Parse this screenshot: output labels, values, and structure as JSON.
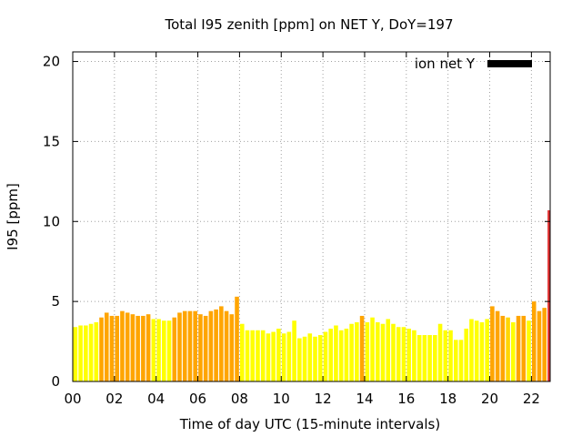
{
  "chart_data": {
    "type": "bar",
    "title": "Total I95 zenith [ppm] on NET Y, DoY=197",
    "xlabel": "Time of day UTC (15-minute intervals)",
    "ylabel": "I95 [ppm]",
    "xlim": [
      0,
      22.9
    ],
    "ylim": [
      0,
      20.6
    ],
    "xticks": [
      "00",
      "02",
      "04",
      "06",
      "08",
      "10",
      "12",
      "14",
      "16",
      "18",
      "20",
      "22"
    ],
    "yticks": [
      "0",
      "5",
      "10",
      "15",
      "20"
    ],
    "grid": true,
    "legend": {
      "position": "top-right",
      "entries": [
        {
          "name": "ion net Y",
          "color": "#000000"
        }
      ]
    },
    "bar_width_hours": 0.2,
    "colors": {
      "yellow": "#ffff00",
      "gold": "#ffd700",
      "orange": "#ffa500",
      "red": "#e03030"
    },
    "bars": [
      {
        "x": 0.125,
        "value": 3.4,
        "color": "#ffff00"
      },
      {
        "x": 0.375,
        "value": 3.5,
        "color": "#ffff00"
      },
      {
        "x": 0.625,
        "value": 3.5,
        "color": "#ffff00"
      },
      {
        "x": 0.875,
        "value": 3.6,
        "color": "#ffff00"
      },
      {
        "x": 1.125,
        "value": 3.7,
        "color": "#ffff00"
      },
      {
        "x": 1.375,
        "value": 4.0,
        "color": "#ffa500"
      },
      {
        "x": 1.625,
        "value": 4.3,
        "color": "#ffa500"
      },
      {
        "x": 1.875,
        "value": 4.1,
        "color": "#ffa500"
      },
      {
        "x": 2.125,
        "value": 4.1,
        "color": "#ffa500"
      },
      {
        "x": 2.375,
        "value": 4.4,
        "color": "#ffa500"
      },
      {
        "x": 2.625,
        "value": 4.3,
        "color": "#ffa500"
      },
      {
        "x": 2.875,
        "value": 4.2,
        "color": "#ffa500"
      },
      {
        "x": 3.125,
        "value": 4.1,
        "color": "#ffa500"
      },
      {
        "x": 3.375,
        "value": 4.1,
        "color": "#ffa500"
      },
      {
        "x": 3.625,
        "value": 4.2,
        "color": "#ffa500"
      },
      {
        "x": 3.875,
        "value": 3.9,
        "color": "#ffff00"
      },
      {
        "x": 4.125,
        "value": 3.9,
        "color": "#ffff00"
      },
      {
        "x": 4.375,
        "value": 3.8,
        "color": "#ffff00"
      },
      {
        "x": 4.625,
        "value": 3.8,
        "color": "#ffff00"
      },
      {
        "x": 4.875,
        "value": 4.0,
        "color": "#ffa500"
      },
      {
        "x": 5.125,
        "value": 4.3,
        "color": "#ffa500"
      },
      {
        "x": 5.375,
        "value": 4.4,
        "color": "#ffa500"
      },
      {
        "x": 5.625,
        "value": 4.4,
        "color": "#ffa500"
      },
      {
        "x": 5.875,
        "value": 4.4,
        "color": "#ffa500"
      },
      {
        "x": 6.125,
        "value": 4.2,
        "color": "#ffa500"
      },
      {
        "x": 6.375,
        "value": 4.1,
        "color": "#ffa500"
      },
      {
        "x": 6.625,
        "value": 4.4,
        "color": "#ffa500"
      },
      {
        "x": 6.875,
        "value": 4.5,
        "color": "#ffa500"
      },
      {
        "x": 7.125,
        "value": 4.7,
        "color": "#ffa500"
      },
      {
        "x": 7.375,
        "value": 4.4,
        "color": "#ffa500"
      },
      {
        "x": 7.625,
        "value": 4.2,
        "color": "#ffa500"
      },
      {
        "x": 7.875,
        "value": 5.3,
        "color": "#ffa500"
      },
      {
        "x": 8.125,
        "value": 3.6,
        "color": "#ffff00"
      },
      {
        "x": 8.375,
        "value": 3.2,
        "color": "#ffff00"
      },
      {
        "x": 8.625,
        "value": 3.2,
        "color": "#ffff00"
      },
      {
        "x": 8.875,
        "value": 3.2,
        "color": "#ffff00"
      },
      {
        "x": 9.125,
        "value": 3.2,
        "color": "#ffff00"
      },
      {
        "x": 9.375,
        "value": 3.0,
        "color": "#ffff00"
      },
      {
        "x": 9.625,
        "value": 3.1,
        "color": "#ffff00"
      },
      {
        "x": 9.875,
        "value": 3.3,
        "color": "#ffff00"
      },
      {
        "x": 10.125,
        "value": 3.0,
        "color": "#ffff00"
      },
      {
        "x": 10.375,
        "value": 3.1,
        "color": "#ffff00"
      },
      {
        "x": 10.625,
        "value": 3.8,
        "color": "#ffff00"
      },
      {
        "x": 10.875,
        "value": 2.7,
        "color": "#ffff00"
      },
      {
        "x": 11.125,
        "value": 2.8,
        "color": "#ffff00"
      },
      {
        "x": 11.375,
        "value": 3.0,
        "color": "#ffff00"
      },
      {
        "x": 11.625,
        "value": 2.8,
        "color": "#ffff00"
      },
      {
        "x": 11.875,
        "value": 2.9,
        "color": "#ffff00"
      },
      {
        "x": 12.125,
        "value": 3.1,
        "color": "#ffff00"
      },
      {
        "x": 12.375,
        "value": 3.3,
        "color": "#ffff00"
      },
      {
        "x": 12.625,
        "value": 3.5,
        "color": "#ffff00"
      },
      {
        "x": 12.875,
        "value": 3.2,
        "color": "#ffff00"
      },
      {
        "x": 13.125,
        "value": 3.3,
        "color": "#ffff00"
      },
      {
        "x": 13.375,
        "value": 3.6,
        "color": "#ffff00"
      },
      {
        "x": 13.625,
        "value": 3.7,
        "color": "#ffff00"
      },
      {
        "x": 13.875,
        "value": 4.1,
        "color": "#ffa500"
      },
      {
        "x": 14.125,
        "value": 3.7,
        "color": "#ffff00"
      },
      {
        "x": 14.375,
        "value": 4.0,
        "color": "#ffff00"
      },
      {
        "x": 14.625,
        "value": 3.7,
        "color": "#ffff00"
      },
      {
        "x": 14.875,
        "value": 3.6,
        "color": "#ffff00"
      },
      {
        "x": 15.125,
        "value": 3.9,
        "color": "#ffff00"
      },
      {
        "x": 15.375,
        "value": 3.6,
        "color": "#ffff00"
      },
      {
        "x": 15.625,
        "value": 3.4,
        "color": "#ffff00"
      },
      {
        "x": 15.875,
        "value": 3.4,
        "color": "#ffff00"
      },
      {
        "x": 16.125,
        "value": 3.3,
        "color": "#ffff00"
      },
      {
        "x": 16.375,
        "value": 3.2,
        "color": "#ffff00"
      },
      {
        "x": 16.625,
        "value": 2.9,
        "color": "#ffff00"
      },
      {
        "x": 16.875,
        "value": 2.9,
        "color": "#ffff00"
      },
      {
        "x": 17.125,
        "value": 2.9,
        "color": "#ffff00"
      },
      {
        "x": 17.375,
        "value": 2.9,
        "color": "#ffff00"
      },
      {
        "x": 17.625,
        "value": 3.6,
        "color": "#ffff00"
      },
      {
        "x": 17.875,
        "value": 3.2,
        "color": "#ffff00"
      },
      {
        "x": 18.125,
        "value": 3.2,
        "color": "#ffff00"
      },
      {
        "x": 18.375,
        "value": 2.6,
        "color": "#ffff00"
      },
      {
        "x": 18.625,
        "value": 2.6,
        "color": "#ffff00"
      },
      {
        "x": 18.875,
        "value": 3.3,
        "color": "#ffff00"
      },
      {
        "x": 19.125,
        "value": 3.9,
        "color": "#ffff00"
      },
      {
        "x": 19.375,
        "value": 3.8,
        "color": "#ffff00"
      },
      {
        "x": 19.625,
        "value": 3.7,
        "color": "#ffff00"
      },
      {
        "x": 19.875,
        "value": 3.9,
        "color": "#ffff00"
      },
      {
        "x": 20.125,
        "value": 4.7,
        "color": "#ffa500"
      },
      {
        "x": 20.375,
        "value": 4.4,
        "color": "#ffa500"
      },
      {
        "x": 20.625,
        "value": 4.1,
        "color": "#ffa500"
      },
      {
        "x": 20.875,
        "value": 4.0,
        "color": "#ffd700"
      },
      {
        "x": 21.125,
        "value": 3.7,
        "color": "#ffff00"
      },
      {
        "x": 21.375,
        "value": 4.1,
        "color": "#ffa500"
      },
      {
        "x": 21.625,
        "value": 4.1,
        "color": "#ffa500"
      },
      {
        "x": 21.875,
        "value": 3.8,
        "color": "#ffff00"
      },
      {
        "x": 22.125,
        "value": 5.0,
        "color": "#ffa500"
      },
      {
        "x": 22.375,
        "value": 4.4,
        "color": "#ffa500"
      },
      {
        "x": 22.625,
        "value": 4.6,
        "color": "#ffa500"
      },
      {
        "x": 22.875,
        "value": 10.7,
        "color": "#e03030"
      }
    ]
  }
}
